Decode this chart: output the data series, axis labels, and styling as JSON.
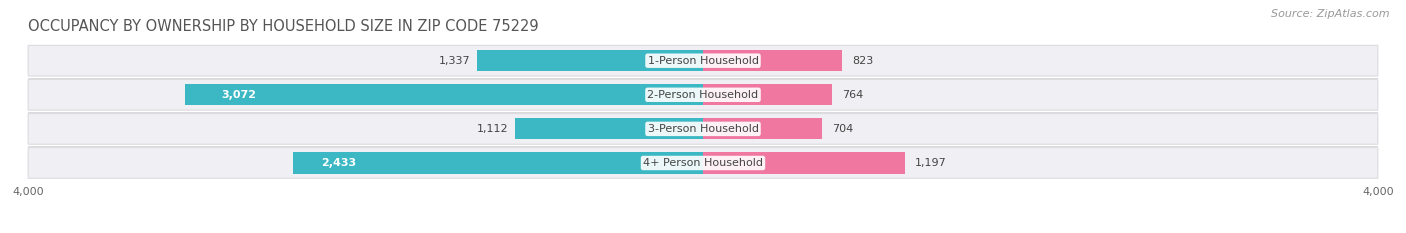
{
  "title": "OCCUPANCY BY OWNERSHIP BY HOUSEHOLD SIZE IN ZIP CODE 75229",
  "source": "Source: ZipAtlas.com",
  "categories": [
    "1-Person Household",
    "2-Person Household",
    "3-Person Household",
    "4+ Person Household"
  ],
  "owner_values": [
    1337,
    3072,
    1112,
    2433
  ],
  "renter_values": [
    823,
    764,
    704,
    1197
  ],
  "owner_color": "#3BB8C3",
  "renter_color": "#F078A0",
  "bar_bg_color": "#E8E8EC",
  "axis_max": 4000,
  "title_fontsize": 10.5,
  "source_fontsize": 8,
  "label_fontsize": 8,
  "tick_fontsize": 8,
  "legend_fontsize": 8,
  "fig_bg_color": "#FFFFFF",
  "bar_height": 0.62,
  "row_bg_color": "#F0F0F4",
  "row_border_color": "#DCDCE0"
}
